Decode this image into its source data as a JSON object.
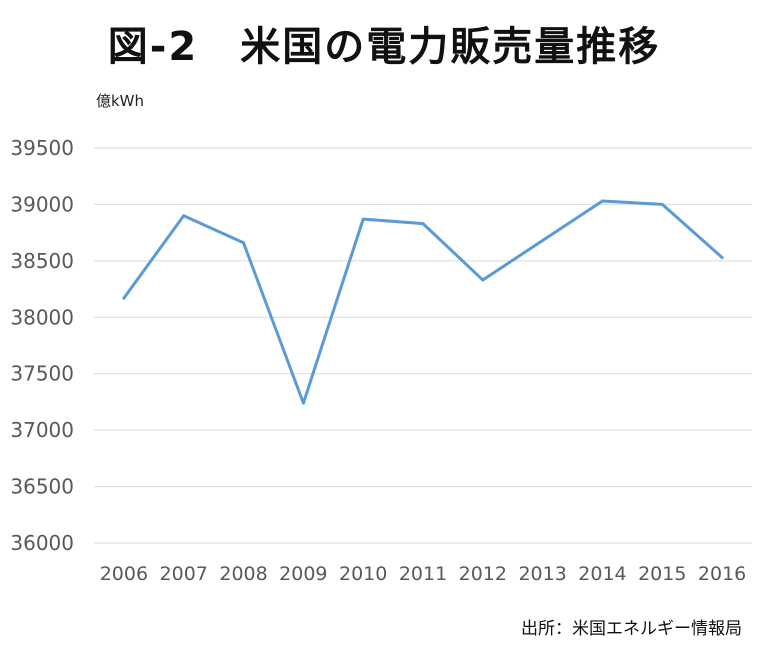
{
  "title": "図-2　米国の電力販売量推移",
  "unit": "億kWh",
  "source": "出所：米国エネルギー情報局",
  "chart_data": {
    "type": "line",
    "title": "図-2　米国の電力販売量推移",
    "ylabel": "億kWh",
    "xlabel": "",
    "categories": [
      "2006",
      "2007",
      "2008",
      "2009",
      "2010",
      "2011",
      "2012",
      "2013",
      "2014",
      "2015",
      "2016"
    ],
    "series": [
      {
        "values": [
          38170,
          38900,
          38660,
          37240,
          38870,
          38830,
          38330,
          38680,
          39030,
          39000,
          38530
        ]
      }
    ],
    "ylim": [
      36000,
      39500
    ],
    "yticks": [
      36000,
      36500,
      37000,
      37500,
      38000,
      38500,
      39000,
      39500
    ],
    "grid": true,
    "legend": "none",
    "colors": {
      "line": "#5b9bd5",
      "grid": "#d9d9d9",
      "tick": "#595959"
    }
  }
}
